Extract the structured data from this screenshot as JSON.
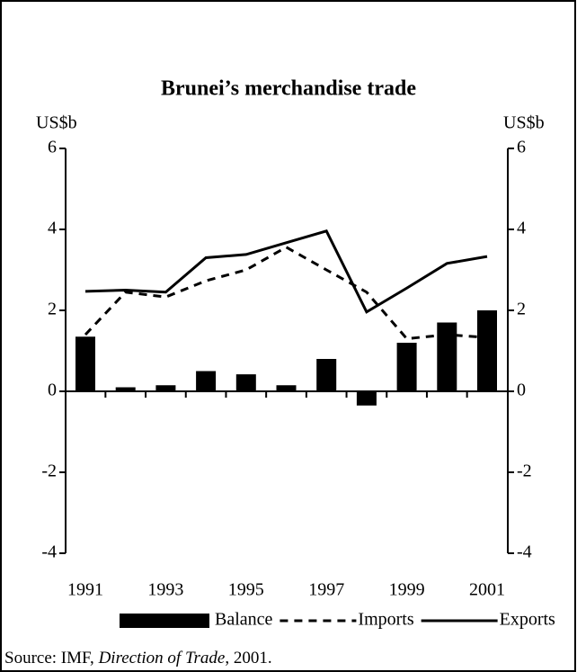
{
  "chart_data": {
    "type": "combo",
    "title": "Brunei’s merchandise trade",
    "y_label": "US$b",
    "y2_label": "US$b",
    "categories": [
      "1991",
      null,
      "1993",
      null,
      "1995",
      null,
      "1997",
      null,
      "1999",
      null,
      "2001"
    ],
    "series": [
      {
        "name": "Balance",
        "type": "bar",
        "color": "#000000",
        "values": [
          1.35,
          0.1,
          0.15,
          0.5,
          0.42,
          0.15,
          0.8,
          -0.35,
          1.2,
          1.7,
          2.0
        ]
      },
      {
        "name": "Imports",
        "type": "line",
        "dashed": true,
        "color": "#000000",
        "values": [
          1.4,
          2.45,
          2.33,
          2.73,
          3.0,
          3.56,
          3.0,
          2.45,
          1.3,
          1.4,
          1.33
        ]
      },
      {
        "name": "Exports",
        "type": "line",
        "dashed": false,
        "color": "#000000",
        "values": [
          2.47,
          2.5,
          2.45,
          3.3,
          3.38,
          3.67,
          3.96,
          1.96,
          2.55,
          3.16,
          3.33
        ]
      }
    ],
    "ylim": [
      -4,
      6
    ],
    "yticks": [
      -4,
      -2,
      0,
      2,
      4,
      6
    ],
    "y2lim": [
      -4,
      6
    ],
    "y2ticks": [
      -4,
      -2,
      0,
      2,
      4,
      6
    ],
    "legend": "bottom",
    "source": [
      "Source:  IMF, ",
      "Direction of Trade",
      ", 2001."
    ]
  }
}
